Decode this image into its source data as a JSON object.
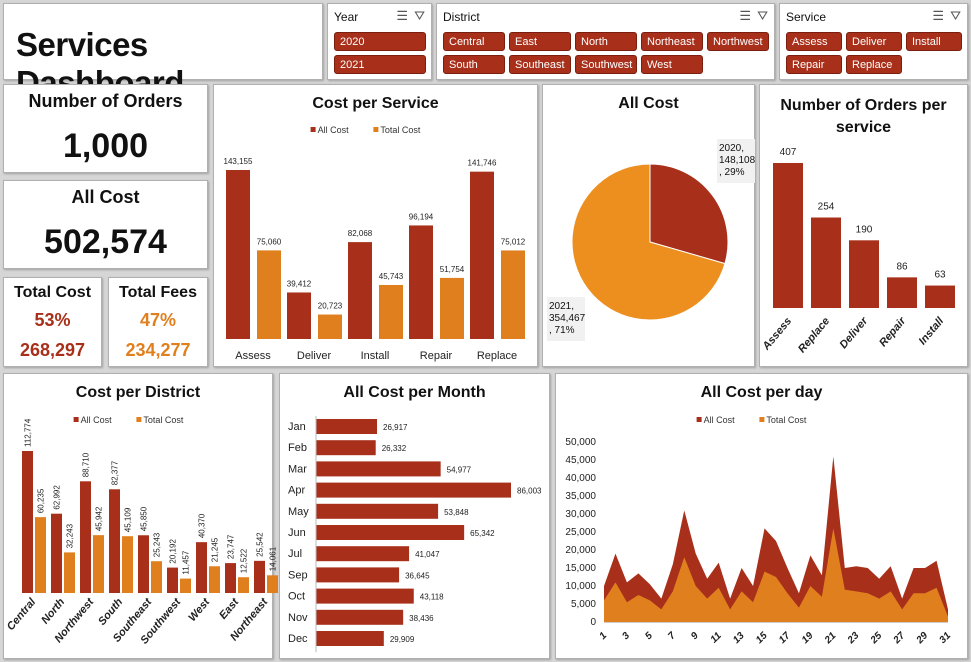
{
  "header": {
    "title": "Services Dashboard"
  },
  "slicers": {
    "year": {
      "title": "Year",
      "items": [
        "2020",
        "2021"
      ]
    },
    "district": {
      "title": "District",
      "items": [
        "Central",
        "East",
        "North",
        "Northeast",
        "Northwest",
        "South",
        "Southeast",
        "Southwest",
        "West"
      ]
    },
    "service": {
      "title": "Service",
      "items": [
        "Assess",
        "Deliver",
        "Install",
        "Repair",
        "Replace"
      ]
    },
    "icons": [
      "multi-select-icon",
      "clear-filter-icon"
    ]
  },
  "kpis": {
    "orders": {
      "label": "Number of Orders",
      "value": "1,000"
    },
    "all_cost": {
      "label": "All Cost",
      "value": "502,574"
    },
    "total_cost": {
      "label": "Total Cost",
      "pct": "53%",
      "value": "268,297"
    },
    "total_fees": {
      "label": "Total Fees",
      "pct": "47%",
      "value": "234,277"
    }
  },
  "colors": {
    "all_cost": "#a8301b",
    "total_cost": "#e07f1e",
    "pie_light": "#ec8f1f"
  },
  "chart_data": [
    {
      "id": "cost_per_service",
      "type": "bar",
      "title": "Cost per Service",
      "legend": "top",
      "categories": [
        "Assess",
        "Deliver",
        "Install",
        "Repair",
        "Replace"
      ],
      "series": [
        {
          "name": "All Cost",
          "values": [
            143155,
            39412,
            82068,
            96194,
            141746
          ],
          "labels": [
            "143,155",
            "39,412",
            "82,068",
            "96,194",
            "141,746"
          ]
        },
        {
          "name": "Total Cost",
          "values": [
            75060,
            20723,
            45743,
            51754,
            75012
          ],
          "labels": [
            "75,060",
            "20,723",
            "45,743",
            "51,754",
            "75,012"
          ]
        }
      ]
    },
    {
      "id": "all_cost_pie",
      "type": "pie",
      "title": "All Cost",
      "slices": [
        {
          "name": "2020",
          "value": 148108,
          "pct": "29%",
          "label_lines": [
            "2020,",
            "148,108",
            ", 29%"
          ]
        },
        {
          "name": "2021",
          "value": 354467,
          "pct": "71%",
          "label_lines": [
            "2021,",
            "354,467",
            ", 71%"
          ]
        }
      ]
    },
    {
      "id": "orders_per_service",
      "type": "bar",
      "title": "Number of Orders per service",
      "categories": [
        "Assess",
        "Replace",
        "Deliver",
        "Repair",
        "Install"
      ],
      "values": [
        407,
        254,
        190,
        86,
        63
      ]
    },
    {
      "id": "cost_per_district",
      "type": "bar",
      "title": "Cost per District",
      "legend": "top",
      "categories": [
        "Central",
        "North",
        "Northwest",
        "South",
        "Southeast",
        "Southwest",
        "West",
        "East",
        "Northeast"
      ],
      "series": [
        {
          "name": "All Cost",
          "values": [
            112774,
            62992,
            88710,
            82377,
            45850,
            20192,
            40370,
            23747,
            25542
          ],
          "labels": [
            "112,774",
            "62,992",
            "88,710",
            "82,377",
            "45,850",
            "20,192",
            "40,370",
            "23,747",
            "25,542"
          ]
        },
        {
          "name": "Total Cost",
          "values": [
            60235,
            32243,
            45942,
            45109,
            25243,
            11457,
            21245,
            12522,
            14061
          ],
          "labels": [
            "60,235",
            "32,243",
            "45,942",
            "45,109",
            "25,243",
            "11,457",
            "21,245",
            "12,522",
            "14,061"
          ]
        }
      ]
    },
    {
      "id": "all_cost_per_month",
      "type": "bar",
      "orientation": "horizontal",
      "title": "All Cost per Month",
      "categories": [
        "Jan",
        "Feb",
        "Mar",
        "Apr",
        "May",
        "Jun",
        "Jul",
        "Sep",
        "Oct",
        "Nov",
        "Dec"
      ],
      "values": [
        26917,
        26332,
        54977,
        86003,
        53848,
        65342,
        41047,
        36645,
        43118,
        38436,
        29909
      ],
      "labels": [
        "26,917",
        "26,332",
        "54,977",
        "86,003",
        "53,848",
        "65,342",
        "41,047",
        "36,645",
        "43,118",
        "38,436",
        "29,909"
      ]
    },
    {
      "id": "all_cost_per_day",
      "type": "area",
      "title": "All Cost per day",
      "legend": "top",
      "x": [
        1,
        2,
        3,
        4,
        5,
        6,
        7,
        8,
        9,
        10,
        11,
        12,
        13,
        14,
        15,
        16,
        17,
        18,
        19,
        20,
        21,
        22,
        23,
        24,
        25,
        26,
        27,
        28,
        29,
        30,
        31
      ],
      "ylim": [
        0,
        50000
      ],
      "yticks": [
        "0",
        "5,000",
        "10,000",
        "15,000",
        "20,000",
        "25,000",
        "30,000",
        "35,000",
        "40,000",
        "45,000",
        "50,000"
      ],
      "xticks": [
        "1",
        "3",
        "5",
        "7",
        "9",
        "11",
        "13",
        "15",
        "17",
        "19",
        "21",
        "23",
        "25",
        "27",
        "29",
        "31"
      ],
      "series": [
        {
          "name": "All Cost",
          "values": [
            10000,
            19000,
            11000,
            13500,
            10500,
            6500,
            16000,
            31000,
            19000,
            12000,
            16500,
            6500,
            15000,
            10000,
            26000,
            22500,
            15000,
            8000,
            18500,
            13000,
            46000,
            15000,
            15500,
            15000,
            12000,
            15500,
            6500,
            15000,
            15000,
            17000,
            3500
          ]
        },
        {
          "name": "Total Cost",
          "values": [
            6000,
            11000,
            5500,
            7500,
            6000,
            3500,
            8500,
            18000,
            10000,
            6500,
            9500,
            3500,
            8500,
            5500,
            14000,
            12500,
            8000,
            4000,
            10000,
            7000,
            26000,
            9000,
            8500,
            8000,
            6500,
            8500,
            3500,
            8000,
            8000,
            9500,
            1500
          ]
        }
      ]
    }
  ]
}
